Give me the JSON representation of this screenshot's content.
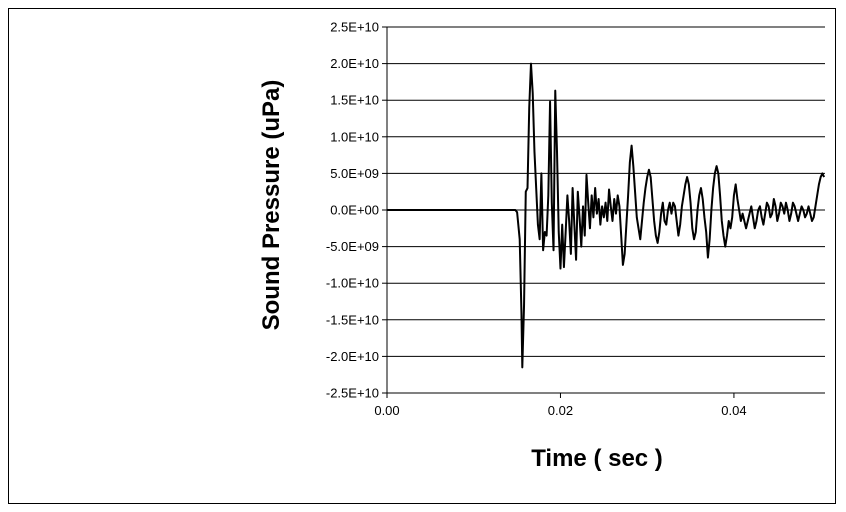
{
  "chart_data": {
    "type": "line",
    "title": "",
    "xlabel": "Time ( sec )",
    "ylabel": "Sound Pressure (uPa)",
    "xlim": [
      0,
      0.0505
    ],
    "ylim": [
      -25000000000,
      25000000000
    ],
    "grid": {
      "horizontal": true,
      "vertical": false
    },
    "legend": "none",
    "x_ticks": [
      0,
      0.02,
      0.04
    ],
    "x_tick_labels": [
      "0.00",
      "0.02",
      "0.04"
    ],
    "y_ticks": [
      25000000000,
      20000000000,
      15000000000,
      10000000000,
      5000000000,
      0,
      -5000000000,
      -10000000000,
      -15000000000,
      -20000000000,
      -25000000000
    ],
    "y_tick_labels": [
      "2.5E+10",
      "2.0E+10",
      "1.5E+10",
      "1.0E+10",
      "5.0E+09",
      "0.0E+00",
      "-5.0E+09",
      "-1.0E+10",
      "-1.5E+10",
      "-2.0E+10",
      "-2.5E+10"
    ],
    "series": [
      {
        "color": "#000000",
        "points": [
          [
            0.0,
            0
          ],
          [
            0.005,
            0
          ],
          [
            0.01,
            0
          ],
          [
            0.0148,
            0
          ],
          [
            0.015,
            -300000000
          ],
          [
            0.0153,
            -4000000000
          ],
          [
            0.0155,
            -14000000000
          ],
          [
            0.0156,
            -21500000000
          ],
          [
            0.0158,
            -13000000000
          ],
          [
            0.016,
            2500000000
          ],
          [
            0.0162,
            3000000000
          ],
          [
            0.0164,
            14000000000
          ],
          [
            0.0166,
            20000000000
          ],
          [
            0.0168,
            16000000000
          ],
          [
            0.017,
            8000000000
          ],
          [
            0.0172,
            3000000000
          ],
          [
            0.0174,
            -2000000000
          ],
          [
            0.0176,
            -4000000000
          ],
          [
            0.0178,
            5000000000
          ],
          [
            0.018,
            -5500000000
          ],
          [
            0.0182,
            -3000000000
          ],
          [
            0.0184,
            -3500000000
          ],
          [
            0.0186,
            2000000000
          ],
          [
            0.0188,
            14800000000
          ],
          [
            0.019,
            1000000000
          ],
          [
            0.0192,
            -5500000000
          ],
          [
            0.0194,
            16300000000
          ],
          [
            0.0196,
            8000000000
          ],
          [
            0.0198,
            -3000000000
          ],
          [
            0.02,
            -8000000000
          ],
          [
            0.0202,
            -2000000000
          ],
          [
            0.0204,
            -7800000000
          ],
          [
            0.0206,
            -3000000000
          ],
          [
            0.0208,
            2000000000
          ],
          [
            0.021,
            -1500000000
          ],
          [
            0.0212,
            -6000000000
          ],
          [
            0.0214,
            3000000000
          ],
          [
            0.0216,
            -2000000000
          ],
          [
            0.0218,
            -6800000000
          ],
          [
            0.022,
            2500000000
          ],
          [
            0.0222,
            -1000000000
          ],
          [
            0.0224,
            -5000000000
          ],
          [
            0.0226,
            500000000
          ],
          [
            0.0228,
            -3500000000
          ],
          [
            0.023,
            4800000000
          ],
          [
            0.0232,
            1000000000
          ],
          [
            0.0234,
            -2500000000
          ],
          [
            0.0236,
            2000000000
          ],
          [
            0.0238,
            -1000000000
          ],
          [
            0.024,
            3000000000
          ],
          [
            0.0242,
            -500000000
          ],
          [
            0.0244,
            1500000000
          ],
          [
            0.0246,
            -2000000000
          ],
          [
            0.0248,
            500000000
          ],
          [
            0.025,
            -1000000000
          ],
          [
            0.0252,
            1000000000
          ],
          [
            0.0254,
            -1500000000
          ],
          [
            0.0256,
            2800000000
          ],
          [
            0.0258,
            500000000
          ],
          [
            0.026,
            -1500000000
          ],
          [
            0.0262,
            1500000000
          ],
          [
            0.0264,
            -500000000
          ],
          [
            0.0266,
            2000000000
          ],
          [
            0.0268,
            500000000
          ],
          [
            0.027,
            -3500000000
          ],
          [
            0.0272,
            -7500000000
          ],
          [
            0.0274,
            -6000000000
          ],
          [
            0.0276,
            -2000000000
          ],
          [
            0.0278,
            2000000000
          ],
          [
            0.028,
            6500000000
          ],
          [
            0.0282,
            8800000000
          ],
          [
            0.0284,
            6000000000
          ],
          [
            0.0286,
            2500000000
          ],
          [
            0.0288,
            -1000000000
          ],
          [
            0.029,
            -2500000000
          ],
          [
            0.0292,
            -4000000000
          ],
          [
            0.0294,
            -1500000000
          ],
          [
            0.0296,
            1000000000
          ],
          [
            0.0298,
            3000000000
          ],
          [
            0.03,
            4500000000
          ],
          [
            0.0302,
            5500000000
          ],
          [
            0.0304,
            4500000000
          ],
          [
            0.0306,
            1500000000
          ],
          [
            0.0308,
            -1500000000
          ],
          [
            0.031,
            -3500000000
          ],
          [
            0.0312,
            -4500000000
          ],
          [
            0.0314,
            -3000000000
          ],
          [
            0.0316,
            -500000000
          ],
          [
            0.0318,
            1000000000
          ],
          [
            0.032,
            -1500000000
          ],
          [
            0.0322,
            -2000000000
          ],
          [
            0.0324,
            0
          ],
          [
            0.0326,
            1000000000
          ],
          [
            0.0328,
            -500000000
          ],
          [
            0.033,
            1000000000
          ],
          [
            0.0332,
            500000000
          ],
          [
            0.0334,
            -1500000000
          ],
          [
            0.0336,
            -3500000000
          ],
          [
            0.0338,
            -2000000000
          ],
          [
            0.034,
            500000000
          ],
          [
            0.0342,
            2000000000
          ],
          [
            0.0344,
            3500000000
          ],
          [
            0.0346,
            4500000000
          ],
          [
            0.0348,
            3500000000
          ],
          [
            0.035,
            1000000000
          ],
          [
            0.0352,
            -2500000000
          ],
          [
            0.0354,
            -4000000000
          ],
          [
            0.0356,
            -3000000000
          ],
          [
            0.0358,
            0
          ],
          [
            0.036,
            2000000000
          ],
          [
            0.0362,
            3000000000
          ],
          [
            0.0364,
            1500000000
          ],
          [
            0.0366,
            -1000000000
          ],
          [
            0.0368,
            -3000000000
          ],
          [
            0.037,
            -6500000000
          ],
          [
            0.0372,
            -4000000000
          ],
          [
            0.0374,
            0
          ],
          [
            0.0376,
            3000000000
          ],
          [
            0.0378,
            5000000000
          ],
          [
            0.038,
            6000000000
          ],
          [
            0.0382,
            5000000000
          ],
          [
            0.0384,
            2000000000
          ],
          [
            0.0386,
            -1500000000
          ],
          [
            0.0388,
            -3500000000
          ],
          [
            0.039,
            -5000000000
          ],
          [
            0.0392,
            -3500000000
          ],
          [
            0.0394,
            -1500000000
          ],
          [
            0.0396,
            -2500000000
          ],
          [
            0.0398,
            -1000000000
          ],
          [
            0.04,
            2000000000
          ],
          [
            0.0402,
            3500000000
          ],
          [
            0.0404,
            1500000000
          ],
          [
            0.0406,
            0
          ],
          [
            0.0408,
            -1500000000
          ],
          [
            0.041,
            -500000000
          ],
          [
            0.0412,
            -1500000000
          ],
          [
            0.0414,
            -2500000000
          ],
          [
            0.0416,
            -1500000000
          ],
          [
            0.0418,
            -500000000
          ],
          [
            0.042,
            500000000
          ],
          [
            0.0422,
            -1000000000
          ],
          [
            0.0424,
            -2500000000
          ],
          [
            0.0426,
            -1500000000
          ],
          [
            0.0428,
            0
          ],
          [
            0.043,
            500000000
          ],
          [
            0.0432,
            -1000000000
          ],
          [
            0.0434,
            -2000000000
          ],
          [
            0.0436,
            -500000000
          ],
          [
            0.0438,
            1000000000
          ],
          [
            0.044,
            500000000
          ],
          [
            0.0442,
            -1000000000
          ],
          [
            0.0444,
            -500000000
          ],
          [
            0.0446,
            1500000000
          ],
          [
            0.0448,
            500000000
          ],
          [
            0.045,
            -1500000000
          ],
          [
            0.0452,
            -500000000
          ],
          [
            0.0454,
            1000000000
          ],
          [
            0.0456,
            500000000
          ],
          [
            0.0458,
            -500000000
          ],
          [
            0.046,
            1000000000
          ],
          [
            0.0462,
            0
          ],
          [
            0.0464,
            -1500000000
          ],
          [
            0.0466,
            -500000000
          ],
          [
            0.0468,
            1000000000
          ],
          [
            0.047,
            500000000
          ],
          [
            0.0472,
            -500000000
          ],
          [
            0.0474,
            -1500000000
          ],
          [
            0.0476,
            -500000000
          ],
          [
            0.0478,
            500000000
          ],
          [
            0.048,
            0
          ],
          [
            0.0482,
            -1000000000
          ],
          [
            0.0484,
            -500000000
          ],
          [
            0.0486,
            500000000
          ],
          [
            0.0488,
            -500000000
          ],
          [
            0.049,
            -1500000000
          ],
          [
            0.0492,
            -1000000000
          ],
          [
            0.0494,
            500000000
          ],
          [
            0.0496,
            2000000000
          ],
          [
            0.0498,
            3500000000
          ],
          [
            0.05,
            4500000000
          ],
          [
            0.0502,
            5000000000
          ],
          [
            0.0504,
            4500000000
          ]
        ]
      }
    ]
  }
}
